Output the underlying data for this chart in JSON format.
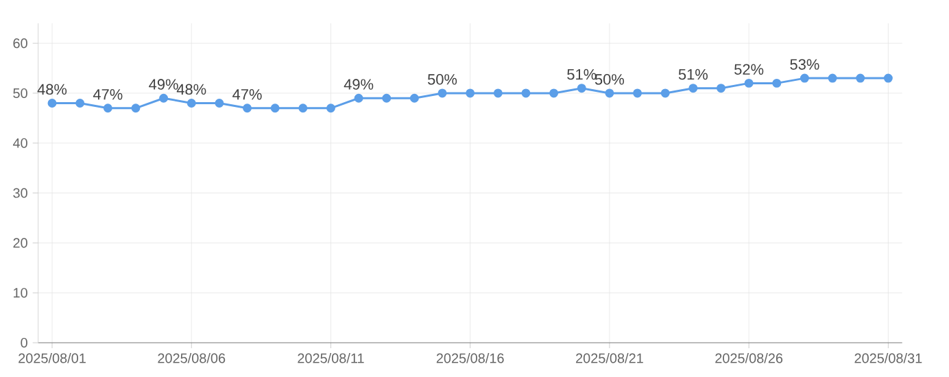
{
  "chart_data": {
    "type": "line",
    "categories": [
      "2025/08/01",
      null,
      null,
      null,
      null,
      "2025/08/06",
      null,
      null,
      null,
      null,
      "2025/08/11",
      null,
      null,
      null,
      null,
      "2025/08/16",
      null,
      null,
      null,
      null,
      "2025/08/21",
      null,
      null,
      null,
      null,
      "2025/08/26",
      null,
      null,
      null,
      null,
      "2025/08/31"
    ],
    "series": [
      {
        "color": "#5b9ee8",
        "values": [
          48,
          48,
          47,
          47,
          49,
          48,
          48,
          47,
          47,
          47,
          47,
          49,
          49,
          49,
          50,
          50,
          50,
          50,
          50,
          51,
          50,
          50,
          50,
          51,
          51,
          52,
          52,
          53,
          53,
          53,
          53
        ],
        "value_labels": [
          "48%",
          null,
          "47%",
          null,
          "49%",
          "48%",
          null,
          "47%",
          null,
          null,
          null,
          "49%",
          null,
          null,
          "50%",
          null,
          null,
          null,
          null,
          "51%",
          "50%",
          null,
          null,
          "51%",
          null,
          "52%",
          null,
          "53%",
          null,
          null,
          null
        ]
      }
    ],
    "ylim": [
      0,
      64
    ],
    "yticks": [
      0,
      10,
      20,
      30,
      40,
      50,
      60
    ],
    "grid": true,
    "marker": "circle",
    "line_style": "solid"
  }
}
